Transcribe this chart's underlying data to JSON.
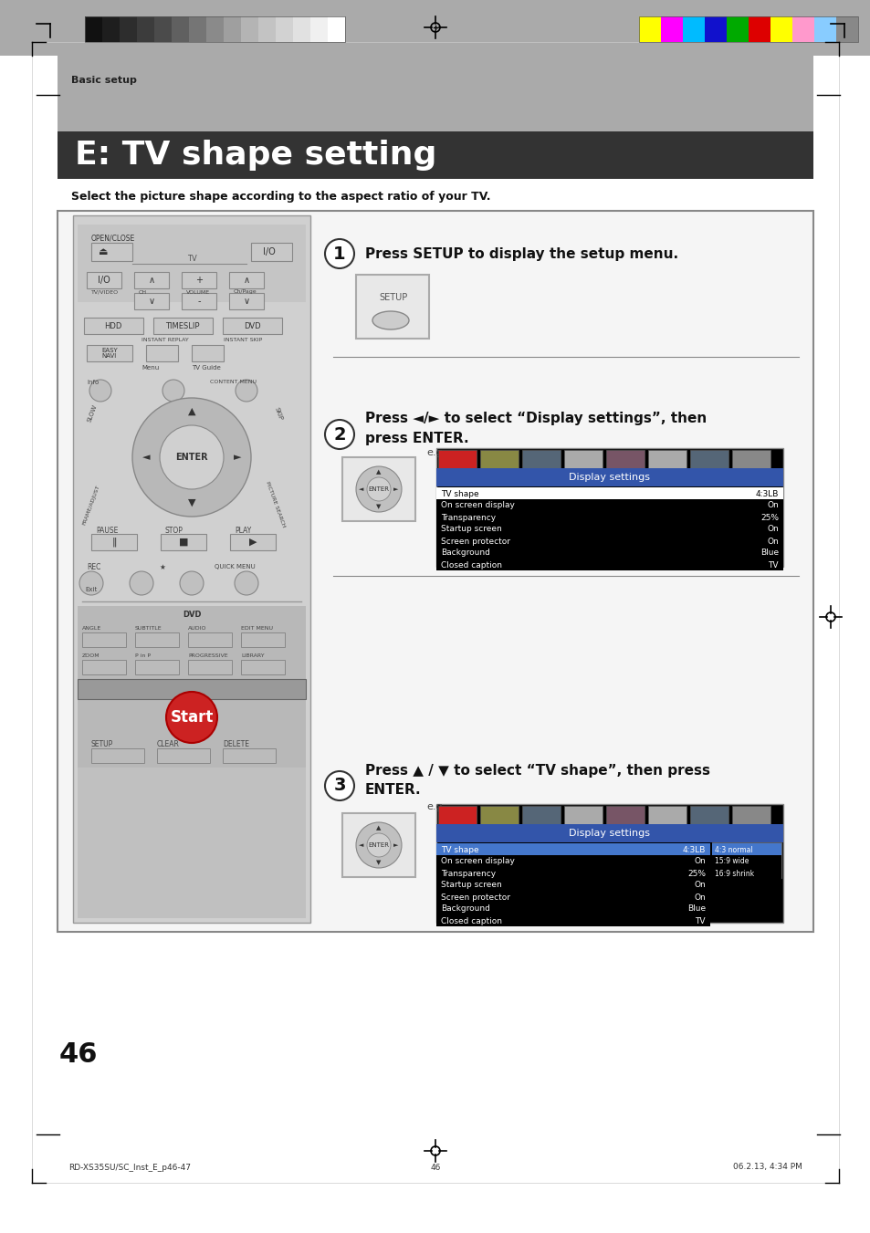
{
  "page_bg": "#ffffff",
  "section_label": "Basic setup",
  "title_text": "E: TV shape setting",
  "subtitle": "Select the picture shape according to the aspect ratio of your TV.",
  "step1_text": "Press SETUP to display the setup menu.",
  "step2_text_line1": "Press ◄/► to select “Display settings”, then",
  "step2_text_line2": "press ENTER.",
  "step3_text_line1": "Press ▲ / ▼ to select “TV shape”, then press",
  "step3_text_line2": "ENTER.",
  "menu_title": "Display settings",
  "menu_rows": [
    [
      "TV shape",
      "4:3LB"
    ],
    [
      "On screen display",
      "On"
    ],
    [
      "Transparency",
      "25%"
    ],
    [
      "Startup screen",
      "On"
    ],
    [
      "Screen protector",
      "On"
    ],
    [
      "Background",
      "Blue"
    ],
    [
      "Closed caption",
      "TV"
    ]
  ],
  "menu2_title": "Display settings",
  "menu2_rows": [
    [
      "TV shape",
      "4:3LB"
    ],
    [
      "On screen display",
      "On"
    ],
    [
      "Transparency",
      "25%"
    ],
    [
      "Startup screen",
      "On"
    ],
    [
      "Screen protector",
      "On"
    ],
    [
      "Background",
      "Blue"
    ],
    [
      "Closed caption",
      "TV"
    ]
  ],
  "submenu2_items": [
    "4:3 normal",
    "15:9 wide",
    "16:9 shrink"
  ],
  "page_number": "46",
  "footer_left": "RD-XS35SU/SC_Inst_E_p46-47",
  "footer_center": "46",
  "footer_right": "06.2.13, 4:34 PM",
  "start_label": "Start"
}
